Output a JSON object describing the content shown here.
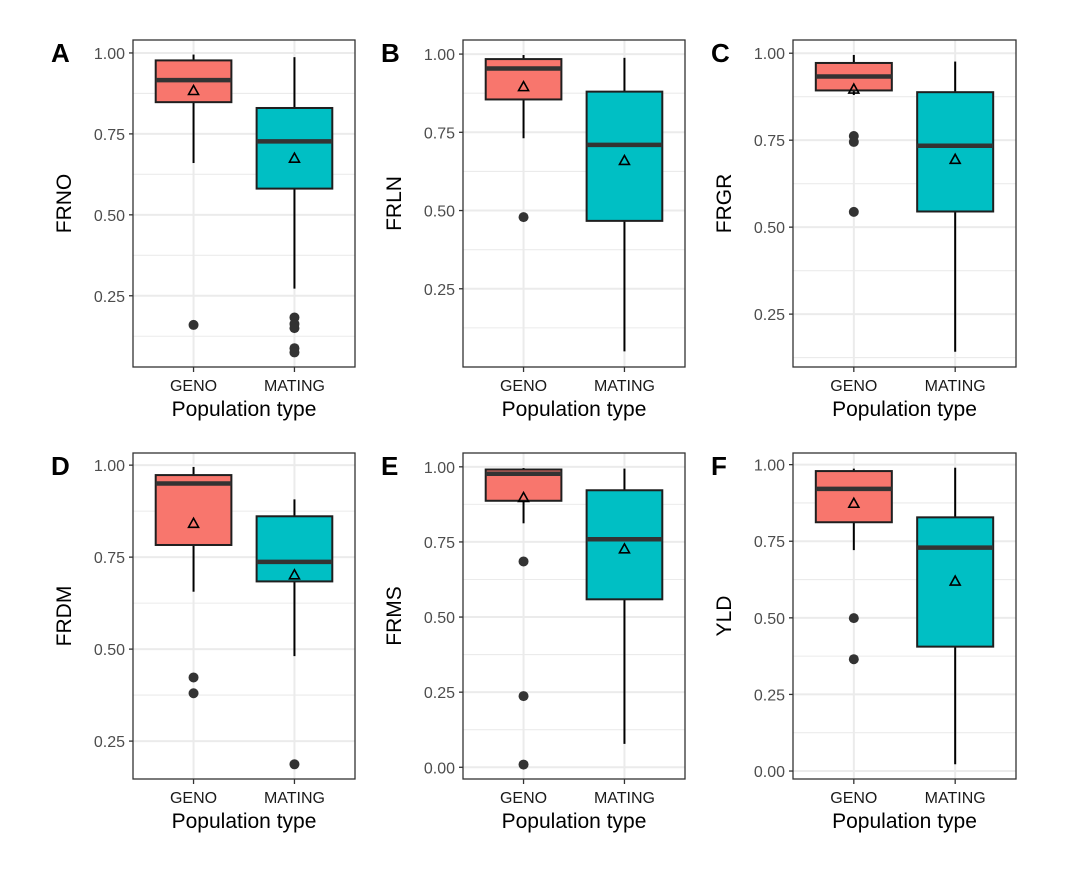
{
  "chart_data": [
    {
      "type": "box",
      "panel": "A",
      "ylabel": "FRNO",
      "xlabel": "Population type",
      "categories": [
        "GENO",
        "MATING"
      ],
      "yticks": [
        0.25,
        0.5,
        0.75,
        1.0
      ],
      "ytick_labels": [
        "0.25",
        "0.50",
        "0.75",
        "1.00"
      ],
      "ylim": [
        0.03,
        1.04
      ],
      "grid": true,
      "boxes": [
        {
          "category": "GENO",
          "whisker_low": 0.66,
          "q1": 0.848,
          "median": 0.916,
          "q3": 0.977,
          "whisker_high": 0.995,
          "mean": 0.884,
          "outliers": [
            0.16
          ]
        },
        {
          "category": "MATING",
          "whisker_low": 0.272,
          "q1": 0.581,
          "median": 0.727,
          "q3": 0.83,
          "whisker_high": 0.987,
          "mean": 0.675,
          "outliers": [
            0.183,
            0.163,
            0.15,
            0.088,
            0.075
          ]
        }
      ]
    },
    {
      "type": "box",
      "panel": "B",
      "ylabel": "FRLN",
      "xlabel": "Population type",
      "categories": [
        "GENO",
        "MATING"
      ],
      "yticks": [
        0.25,
        0.5,
        0.75,
        1.0
      ],
      "ytick_labels": [
        "0.25",
        "0.50",
        "0.75",
        "1.00"
      ],
      "ylim": [
        0.0,
        1.045
      ],
      "grid": true,
      "boxes": [
        {
          "category": "GENO",
          "whisker_low": 0.731,
          "q1": 0.855,
          "median": 0.954,
          "q3": 0.984,
          "whisker_high": 0.997,
          "mean": 0.896,
          "outliers": [
            0.479
          ]
        },
        {
          "category": "MATING",
          "whisker_low": 0.05,
          "q1": 0.467,
          "median": 0.71,
          "q3": 0.88,
          "whisker_high": 0.988,
          "mean": 0.66,
          "outliers": []
        }
      ]
    },
    {
      "type": "box",
      "panel": "C",
      "ylabel": "FRGR",
      "xlabel": "Population type",
      "categories": [
        "GENO",
        "MATING"
      ],
      "yticks": [
        0.25,
        0.5,
        0.75,
        1.0
      ],
      "ytick_labels": [
        "0.25",
        "0.50",
        "0.75",
        "1.00"
      ],
      "ylim": [
        0.098,
        1.038
      ],
      "grid": true,
      "boxes": [
        {
          "category": "GENO",
          "whisker_low": 0.88,
          "q1": 0.893,
          "median": 0.933,
          "q3": 0.972,
          "whisker_high": 0.995,
          "mean": 0.897,
          "outliers": [
            0.762,
            0.745,
            0.544
          ]
        },
        {
          "category": "MATING",
          "whisker_low": 0.142,
          "q1": 0.545,
          "median": 0.734,
          "q3": 0.888,
          "whisker_high": 0.976,
          "mean": 0.695,
          "outliers": []
        }
      ]
    },
    {
      "type": "box",
      "panel": "D",
      "ylabel": "FRDM",
      "xlabel": "Population type",
      "categories": [
        "GENO",
        "MATING"
      ],
      "yticks": [
        0.25,
        0.5,
        0.75,
        1.0
      ],
      "ytick_labels": [
        "0.25",
        "0.50",
        "0.75",
        "1.00"
      ],
      "ylim": [
        0.147,
        1.033
      ],
      "grid": true,
      "boxes": [
        {
          "category": "GENO",
          "whisker_low": 0.656,
          "q1": 0.783,
          "median": 0.95,
          "q3": 0.973,
          "whisker_high": 0.995,
          "mean": 0.842,
          "outliers": [
            0.423,
            0.38
          ]
        },
        {
          "category": "MATING",
          "whisker_low": 0.481,
          "q1": 0.684,
          "median": 0.737,
          "q3": 0.861,
          "whisker_high": 0.907,
          "mean": 0.702,
          "outliers": [
            0.187
          ]
        }
      ]
    },
    {
      "type": "box",
      "panel": "E",
      "ylabel": "FRMS",
      "xlabel": "Population type",
      "categories": [
        "GENO",
        "MATING"
      ],
      "yticks": [
        0.0,
        0.25,
        0.5,
        0.75,
        1.0
      ],
      "ytick_labels": [
        "0.00",
        "0.25",
        "0.50",
        "0.75",
        "1.00"
      ],
      "ylim": [
        -0.039,
        1.046
      ],
      "grid": true,
      "boxes": [
        {
          "category": "GENO",
          "whisker_low": 0.812,
          "q1": 0.887,
          "median": 0.977,
          "q3": 0.991,
          "whisker_high": 0.996,
          "mean": 0.898,
          "outliers": [
            0.685,
            0.237,
            0.009
          ]
        },
        {
          "category": "MATING",
          "whisker_low": 0.078,
          "q1": 0.559,
          "median": 0.759,
          "q3": 0.922,
          "whisker_high": 0.994,
          "mean": 0.727,
          "outliers": []
        }
      ]
    },
    {
      "type": "box",
      "panel": "F",
      "ylabel": "YLD",
      "xlabel": "Population type",
      "categories": [
        "GENO",
        "MATING"
      ],
      "yticks": [
        0.0,
        0.25,
        0.5,
        0.75,
        1.0
      ],
      "ytick_labels": [
        "0.00",
        "0.25",
        "0.50",
        "0.75",
        "1.00"
      ],
      "ylim": [
        -0.026,
        1.038
      ],
      "grid": true,
      "boxes": [
        {
          "category": "GENO",
          "whisker_low": 0.721,
          "q1": 0.812,
          "median": 0.921,
          "q3": 0.979,
          "whisker_high": 0.987,
          "mean": 0.874,
          "outliers": [
            0.499,
            0.365
          ]
        },
        {
          "category": "MATING",
          "whisker_low": 0.022,
          "q1": 0.406,
          "median": 0.729,
          "q3": 0.828,
          "whisker_high": 0.99,
          "mean": 0.62,
          "outliers": []
        }
      ]
    }
  ],
  "colors": {
    "GENO": "#F8766D",
    "MATING": "#00BFC4",
    "outline": "#1f1f1f",
    "median": "#333333",
    "outlier": "#333333",
    "grid": "#EBEBEB"
  }
}
